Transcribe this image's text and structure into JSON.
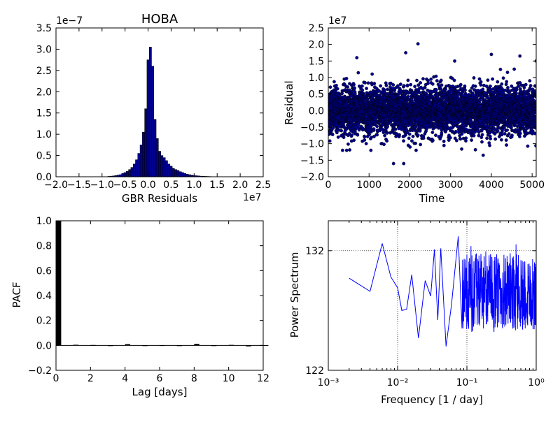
{
  "figure_title": "HOBA",
  "chart_data": [
    {
      "type": "bar",
      "title": "HOBA",
      "xlabel": "GBR Residuals",
      "ylabel": "",
      "x_multiplier": "1e7",
      "y_multiplier": "1e-7",
      "xlim": [
        -2.0,
        2.5
      ],
      "ylim": [
        0.0,
        3.5
      ],
      "xticks": [
        "−2.0",
        "−1.5",
        "−1.0",
        "−0.5",
        "0.0",
        "0.5",
        "1.0",
        "1.5",
        "2.0",
        "2.5"
      ],
      "yticks": [
        "0.0",
        "0.5",
        "1.0",
        "1.5",
        "2.0",
        "2.5",
        "3.0",
        "3.5"
      ],
      "bin_width": 0.05,
      "bins": [
        {
          "x": -0.85,
          "y": 0.01
        },
        {
          "x": -0.8,
          "y": 0.015
        },
        {
          "x": -0.75,
          "y": 0.02
        },
        {
          "x": -0.7,
          "y": 0.03
        },
        {
          "x": -0.65,
          "y": 0.04
        },
        {
          "x": -0.6,
          "y": 0.05
        },
        {
          "x": -0.55,
          "y": 0.08
        },
        {
          "x": -0.5,
          "y": 0.1
        },
        {
          "x": -0.45,
          "y": 0.13
        },
        {
          "x": -0.4,
          "y": 0.17
        },
        {
          "x": -0.35,
          "y": 0.22
        },
        {
          "x": -0.3,
          "y": 0.3
        },
        {
          "x": -0.25,
          "y": 0.4
        },
        {
          "x": -0.2,
          "y": 0.55
        },
        {
          "x": -0.15,
          "y": 0.75
        },
        {
          "x": -0.1,
          "y": 1.05
        },
        {
          "x": -0.05,
          "y": 1.6
        },
        {
          "x": 0.0,
          "y": 2.75
        },
        {
          "x": 0.05,
          "y": 3.05
        },
        {
          "x": 0.1,
          "y": 2.6
        },
        {
          "x": 0.15,
          "y": 1.35
        },
        {
          "x": 0.2,
          "y": 0.9
        },
        {
          "x": 0.25,
          "y": 0.6
        },
        {
          "x": 0.3,
          "y": 0.5
        },
        {
          "x": 0.35,
          "y": 0.45
        },
        {
          "x": 0.4,
          "y": 0.38
        },
        {
          "x": 0.45,
          "y": 0.3
        },
        {
          "x": 0.5,
          "y": 0.25
        },
        {
          "x": 0.55,
          "y": 0.2
        },
        {
          "x": 0.6,
          "y": 0.17
        },
        {
          "x": 0.65,
          "y": 0.15
        },
        {
          "x": 0.7,
          "y": 0.12
        },
        {
          "x": 0.75,
          "y": 0.1
        },
        {
          "x": 0.8,
          "y": 0.08
        },
        {
          "x": 0.85,
          "y": 0.06
        },
        {
          "x": 0.9,
          "y": 0.05
        },
        {
          "x": 0.95,
          "y": 0.04
        },
        {
          "x": 1.0,
          "y": 0.03
        },
        {
          "x": 1.05,
          "y": 0.025
        },
        {
          "x": 1.1,
          "y": 0.02
        },
        {
          "x": 1.15,
          "y": 0.015
        },
        {
          "x": 1.2,
          "y": 0.012
        },
        {
          "x": 1.25,
          "y": 0.01
        },
        {
          "x": 1.3,
          "y": 0.008
        },
        {
          "x": 1.35,
          "y": 0.006
        },
        {
          "x": 1.4,
          "y": 0.004
        }
      ],
      "color": "#00008b"
    },
    {
      "type": "scatter",
      "title": "",
      "xlabel": "Time",
      "ylabel": "Residual",
      "y_multiplier": "1e7",
      "xlim": [
        0,
        5100
      ],
      "ylim": [
        -2.0,
        2.5
      ],
      "xticks": [
        "0",
        "1000",
        "2000",
        "3000",
        "4000",
        "5000"
      ],
      "yticks": [
        "−2.0",
        "−1.5",
        "−1.0",
        "−0.5",
        "0.0",
        "0.5",
        "1.0",
        "1.5",
        "2.0",
        "2.5"
      ],
      "n_points": 5100,
      "noise_std": 0.35,
      "outliers": [
        {
          "x": 700,
          "y": 1.6
        },
        {
          "x": 1900,
          "y": 1.75
        },
        {
          "x": 2200,
          "y": 2.02
        },
        {
          "x": 4000,
          "y": 1.7
        },
        {
          "x": 4700,
          "y": 1.65
        },
        {
          "x": 5100,
          "y": 1.5
        },
        {
          "x": 3100,
          "y": 1.5
        },
        {
          "x": 1600,
          "y": -1.6
        },
        {
          "x": 1850,
          "y": -1.6
        },
        {
          "x": 3800,
          "y": -1.35
        },
        {
          "x": 450,
          "y": -1.2
        },
        {
          "x": 1300,
          "y": -1.0
        }
      ],
      "color": "#00008b"
    },
    {
      "type": "bar",
      "title": "",
      "xlabel": "Lag [days]",
      "ylabel": "PACF",
      "xlim": [
        0,
        12
      ],
      "ylim": [
        -0.2,
        1.0
      ],
      "xticks": [
        "0",
        "2",
        "4",
        "6",
        "8",
        "10",
        "12"
      ],
      "yticks": [
        "−0.2",
        "0.0",
        "0.2",
        "0.4",
        "0.6",
        "0.8",
        "1.0"
      ],
      "lags": [
        0,
        1,
        2,
        3,
        4,
        5,
        6,
        7,
        8,
        9,
        10,
        11,
        12
      ],
      "values": [
        1.0,
        0.005,
        0.003,
        -0.002,
        0.01,
        -0.002,
        0.001,
        0.0,
        0.012,
        -0.001,
        0.004,
        -0.008,
        0.002
      ],
      "color": "#000000"
    },
    {
      "type": "line",
      "title": "",
      "xlabel": "Frequency [1 / day]",
      "ylabel": "Power Spectrum",
      "xscale": "log",
      "xlim": [
        0.001,
        1.0
      ],
      "ylim": [
        122,
        134.5
      ],
      "xticks": [
        "10⁻³",
        "10⁻²",
        "10⁻¹",
        "10⁰"
      ],
      "yticks": [
        "122",
        "132"
      ],
      "grid": "dotted",
      "anchor_points": [
        {
          "x": 0.002,
          "y": 129.7
        },
        {
          "x": 0.004,
          "y": 128.6
        },
        {
          "x": 0.006,
          "y": 132.6
        },
        {
          "x": 0.008,
          "y": 129.8
        },
        {
          "x": 0.01,
          "y": 128.9
        },
        {
          "x": 0.0115,
          "y": 127.0
        },
        {
          "x": 0.0135,
          "y": 127.1
        },
        {
          "x": 0.016,
          "y": 130.0
        },
        {
          "x": 0.02,
          "y": 124.7
        },
        {
          "x": 0.025,
          "y": 129.5
        },
        {
          "x": 0.028,
          "y": 128.7
        },
        {
          "x": 0.03,
          "y": 128.2
        },
        {
          "x": 0.034,
          "y": 132.1
        },
        {
          "x": 0.038,
          "y": 126.2
        },
        {
          "x": 0.042,
          "y": 132.2
        },
        {
          "x": 0.05,
          "y": 124.0
        },
        {
          "x": 0.06,
          "y": 127.5
        },
        {
          "x": 0.075,
          "y": 133.2
        },
        {
          "x": 0.085,
          "y": 125.5
        }
      ],
      "dense_from": 0.085,
      "dense_mean": 128.5,
      "dense_range": 3.3,
      "color": "#0000ff"
    }
  ]
}
